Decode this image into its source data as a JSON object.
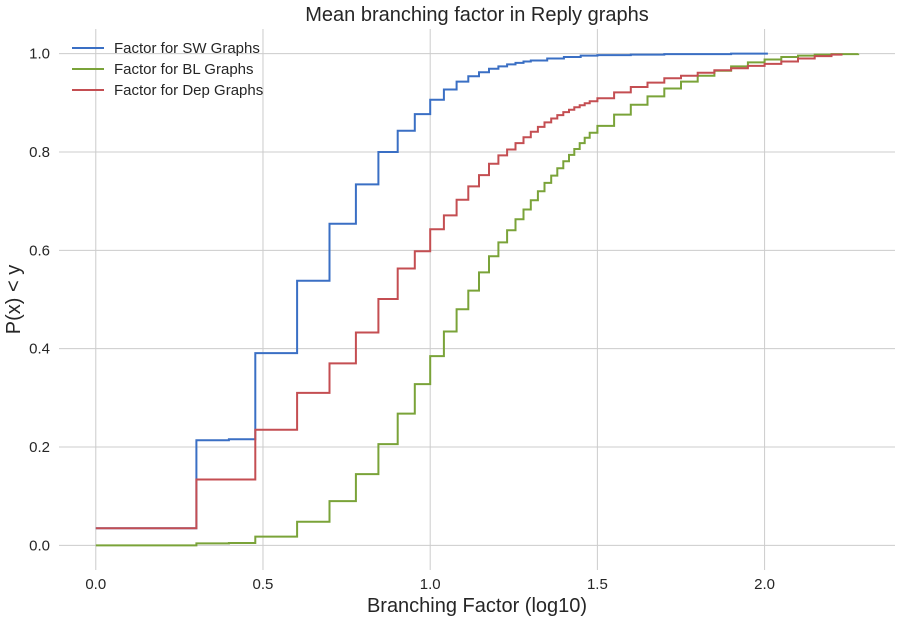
{
  "chart_data": {
    "type": "line",
    "title": "Mean branching factor in Reply graphs",
    "xlabel": "Branching Factor (log10)",
    "ylabel": "P(x) < y",
    "xlim": [
      -0.11,
      2.39
    ],
    "ylim": [
      -0.05,
      1.05
    ],
    "x_ticks": [
      0.0,
      0.5,
      1.0,
      1.5,
      2.0
    ],
    "x_tick_labels": [
      "0.0",
      "0.5",
      "1.0",
      "1.5",
      "2.0"
    ],
    "y_ticks": [
      0.0,
      0.2,
      0.4,
      0.6,
      0.8,
      1.0
    ],
    "y_tick_labels": [
      "0.0",
      "0.2",
      "0.4",
      "0.6",
      "0.8",
      "1.0"
    ],
    "grid": true,
    "legend_position": "top-left",
    "series": [
      {
        "name": "Factor for SW Graphs",
        "color": "#3a6fc4",
        "x": [
          0.0,
          0.301,
          0.398,
          0.477,
          0.602,
          0.699,
          0.778,
          0.845,
          0.903,
          0.954,
          1.0,
          1.041,
          1.079,
          1.114,
          1.146,
          1.176,
          1.204,
          1.23,
          1.255,
          1.279,
          1.301,
          1.35,
          1.4,
          1.45,
          1.5,
          1.6,
          1.7,
          1.8,
          1.9,
          2.01
        ],
        "y": [
          0.035,
          0.214,
          0.216,
          0.391,
          0.538,
          0.654,
          0.734,
          0.8,
          0.843,
          0.877,
          0.906,
          0.927,
          0.943,
          0.954,
          0.962,
          0.969,
          0.974,
          0.978,
          0.981,
          0.984,
          0.986,
          0.99,
          0.993,
          0.996,
          0.997,
          0.998,
          0.999,
          0.999,
          1.0,
          1.0
        ]
      },
      {
        "name": "Factor for BL Graphs",
        "color": "#7aa339",
        "x": [
          0.0,
          0.301,
          0.398,
          0.477,
          0.602,
          0.699,
          0.778,
          0.845,
          0.903,
          0.954,
          1.0,
          1.041,
          1.079,
          1.114,
          1.146,
          1.176,
          1.204,
          1.23,
          1.255,
          1.279,
          1.301,
          1.322,
          1.342,
          1.362,
          1.38,
          1.398,
          1.415,
          1.431,
          1.447,
          1.462,
          1.477,
          1.5,
          1.55,
          1.6,
          1.65,
          1.7,
          1.75,
          1.8,
          1.85,
          1.9,
          1.95,
          2.0,
          2.05,
          2.1,
          2.15,
          2.2,
          2.28
        ],
        "y": [
          0.0,
          0.004,
          0.005,
          0.018,
          0.048,
          0.09,
          0.145,
          0.206,
          0.268,
          0.328,
          0.385,
          0.435,
          0.48,
          0.518,
          0.555,
          0.588,
          0.616,
          0.641,
          0.663,
          0.683,
          0.702,
          0.72,
          0.737,
          0.752,
          0.767,
          0.781,
          0.794,
          0.806,
          0.818,
          0.829,
          0.839,
          0.853,
          0.876,
          0.896,
          0.913,
          0.929,
          0.943,
          0.955,
          0.965,
          0.974,
          0.982,
          0.988,
          0.993,
          0.996,
          0.998,
          0.999,
          1.0
        ]
      },
      {
        "name": "Factor for Dep Graphs",
        "color": "#c44e52",
        "x": [
          0.0,
          0.301,
          0.477,
          0.602,
          0.699,
          0.778,
          0.845,
          0.903,
          0.954,
          1.0,
          1.041,
          1.079,
          1.114,
          1.146,
          1.176,
          1.204,
          1.23,
          1.255,
          1.279,
          1.301,
          1.322,
          1.342,
          1.362,
          1.38,
          1.398,
          1.415,
          1.431,
          1.447,
          1.462,
          1.477,
          1.5,
          1.55,
          1.6,
          1.65,
          1.7,
          1.75,
          1.8,
          1.85,
          1.9,
          1.95,
          2.0,
          2.05,
          2.1,
          2.15,
          2.2,
          2.23
        ],
        "y": [
          0.035,
          0.134,
          0.235,
          0.31,
          0.37,
          0.433,
          0.501,
          0.563,
          0.598,
          0.643,
          0.671,
          0.703,
          0.73,
          0.753,
          0.776,
          0.793,
          0.805,
          0.818,
          0.83,
          0.841,
          0.851,
          0.86,
          0.868,
          0.875,
          0.881,
          0.886,
          0.891,
          0.895,
          0.899,
          0.903,
          0.909,
          0.921,
          0.932,
          0.941,
          0.95,
          0.955,
          0.961,
          0.966,
          0.97,
          0.975,
          0.979,
          0.984,
          0.99,
          0.995,
          0.998,
          1.0
        ]
      }
    ]
  }
}
